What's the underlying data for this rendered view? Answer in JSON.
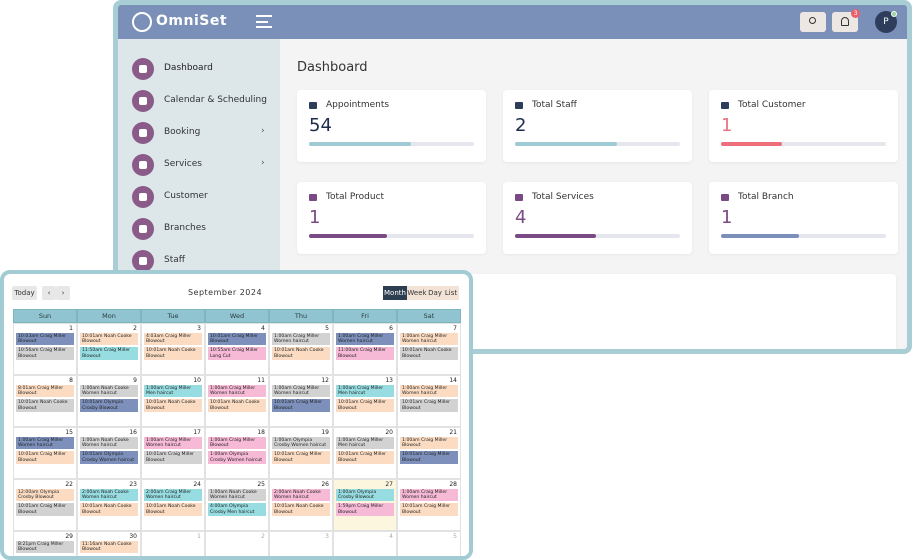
{
  "header": {
    "logo": "OmniSet",
    "notification_count": 3,
    "avatar": "P"
  },
  "sidebar": {
    "items": [
      {
        "label": "Dashboard",
        "active": true
      },
      {
        "label": "Calendar & Scheduling"
      },
      {
        "label": "Booking",
        "has_submenu": true
      },
      {
        "label": "Services",
        "has_submenu": true
      },
      {
        "label": "Customer"
      },
      {
        "label": "Branches"
      },
      {
        "label": "Staff"
      }
    ]
  },
  "main": {
    "title": "Dashboard",
    "cards": [
      {
        "title": "Appointments",
        "value": 54,
        "progress": 62,
        "value_color": "#1e2b4a",
        "bar_color": "#9fcad3"
      },
      {
        "title": "Total Staff",
        "value": 2,
        "progress": 62,
        "value_color": "#1e2b4a",
        "bar_color": "#9fcad3"
      },
      {
        "title": "Total Customer",
        "value": 1,
        "progress": 37,
        "value_color": "#e8727e",
        "bar_color": "#ee6f7b"
      },
      {
        "title": "Total Product",
        "value": 1,
        "progress": 47,
        "value_color": "#7a4a84",
        "bar_color": "#7a4a84"
      },
      {
        "title": "Total Services",
        "value": 4,
        "progress": 49,
        "value_color": "#7a4a84",
        "bar_color": "#7a4a84"
      },
      {
        "title": "Total Branch",
        "value": 1,
        "progress": 47,
        "value_color": "#7a4a84",
        "bar_color": "#7a90b8"
      }
    ]
  },
  "calendar": {
    "today_button": "Today",
    "title": "September 2024",
    "views": [
      "Month",
      "Week",
      "Day",
      "List"
    ],
    "active_view": "Month",
    "weekdays": [
      "Sun",
      "Mon",
      "Tue",
      "Wed",
      "Thu",
      "Fri",
      "Sat"
    ],
    "weeks": [
      [
        {
          "date": 1,
          "events": [
            {
              "text": "10:03am Craig Miller Blowout",
              "color": "#7c90bb"
            },
            {
              "text": "10:56am Craig Miller Blowout",
              "color": "#d2d2d2"
            }
          ]
        },
        {
          "date": 2,
          "events": [
            {
              "text": "10:01am Noah Cooke Blowout",
              "color": "#fbdcc2"
            },
            {
              "text": "11:50am Craig Miller Blowout",
              "color": "#96dce0"
            }
          ]
        },
        {
          "date": 3,
          "events": [
            {
              "text": "4:03am Craig Miller Blowout",
              "color": "#fbdcc2"
            },
            {
              "text": "10:01am Noah Cooke Blowout",
              "color": "#fbdcc2"
            }
          ]
        },
        {
          "date": 4,
          "events": [
            {
              "text": "10:01am Craig Miller Blowout",
              "color": "#7c90bb"
            },
            {
              "text": "10:55am Craig Miller Long Cut",
              "color": "#f6b9d6"
            }
          ]
        },
        {
          "date": 5,
          "events": [
            {
              "text": "1:00am Craig Miller Women haircut",
              "color": "#d2d2d2"
            },
            {
              "text": "10:01am Noah Cooke Blowout",
              "color": "#fbdcc2"
            }
          ]
        },
        {
          "date": 6,
          "events": [
            {
              "text": "1:00am Craig Miller Women haircut",
              "color": "#7c90bb"
            },
            {
              "text": "11:00am Craig Miller Blowout",
              "color": "#f6b9d6"
            }
          ]
        },
        {
          "date": 7,
          "events": [
            {
              "text": "1:00am Craig Miller Women haircut",
              "color": "#fbdcc2"
            },
            {
              "text": "10:01am Noah Cooke Blowout",
              "color": "#d2d2d2"
            }
          ]
        }
      ],
      [
        {
          "date": 8,
          "events": [
            {
              "text": "8:01am Craig Miller Blowout",
              "color": "#fbdcc2"
            },
            {
              "text": "10:01am Noah Cooke Blowout",
              "color": "#d2d2d2"
            }
          ]
        },
        {
          "date": 9,
          "events": [
            {
              "text": "1:00am Noah Cooke Women haircut",
              "color": "#d2d2d2"
            },
            {
              "text": "10:01am Olympia Crosby Blowout",
              "color": "#7c90bb"
            }
          ]
        },
        {
          "date": 10,
          "events": [
            {
              "text": "1:00am Craig Miller Men haircut",
              "color": "#96dce0"
            },
            {
              "text": "10:01am Noah Cooke Blowout",
              "color": "#fbdcc2"
            }
          ]
        },
        {
          "date": 11,
          "events": [
            {
              "text": "1:00am Craig Miller Women haircut",
              "color": "#f6b9d6"
            },
            {
              "text": "10:01am Noah Cooke Blowout",
              "color": "#fbdcc2"
            }
          ]
        },
        {
          "date": 12,
          "events": [
            {
              "text": "1:00am Craig Miller Women haircut",
              "color": "#d2d2d2"
            },
            {
              "text": "10:01am Craig Miller Blowout",
              "color": "#7c90bb"
            }
          ]
        },
        {
          "date": 13,
          "events": [
            {
              "text": "1:00am Craig Miller Men haircut",
              "color": "#96dce0"
            },
            {
              "text": "10:01am Craig Miller Blowout",
              "color": "#fbdcc2"
            }
          ]
        },
        {
          "date": 14,
          "events": [
            {
              "text": "1:00am Craig Miller Women haircut",
              "color": "#fbdcc2"
            },
            {
              "text": "10:01am Craig Miller Blowout",
              "color": "#d2d2d2"
            }
          ]
        }
      ],
      [
        {
          "date": 15,
          "events": [
            {
              "text": "1:00am Craig Miller Women haircut",
              "color": "#7c90bb"
            },
            {
              "text": "10:01am Craig Miller Blowout",
              "color": "#fbdcc2"
            }
          ]
        },
        {
          "date": 16,
          "events": [
            {
              "text": "1:00am Noah Cooke Women haircut",
              "color": "#d2d2d2"
            },
            {
              "text": "10:01am Olympia Crosby Women haircut",
              "color": "#7c90bb"
            }
          ]
        },
        {
          "date": 17,
          "events": [
            {
              "text": "1:00am Craig Miller Women haircut",
              "color": "#f6b9d6"
            },
            {
              "text": "10:01am Craig Miller Blowout",
              "color": "#d2d2d2"
            }
          ]
        },
        {
          "date": 18,
          "events": [
            {
              "text": "1:00am Craig Miller Blowout",
              "color": "#f6b9d6"
            },
            {
              "text": "1:00am Olympia Crosby Women haircut",
              "color": "#f6b9d6"
            }
          ]
        },
        {
          "date": 19,
          "events": [
            {
              "text": "1:00am Olympia Crosby Women haircut",
              "color": "#d2d2d2"
            },
            {
              "text": "10:01am Craig Miller Blowout",
              "color": "#fbdcc2"
            }
          ]
        },
        {
          "date": 20,
          "events": [
            {
              "text": "1:00am Craig Miller Men haircut",
              "color": "#d2d2d2"
            },
            {
              "text": "10:01am Craig Miller Blowout",
              "color": "#fbdcc2"
            }
          ]
        },
        {
          "date": 21,
          "events": [
            {
              "text": "1:00am Craig Miller Blowout",
              "color": "#fbdcc2"
            },
            {
              "text": "10:01am Craig Miller Blowout",
              "color": "#7c90bb"
            }
          ]
        }
      ],
      [
        {
          "date": 22,
          "events": [
            {
              "text": "12:00am Olympia Crosby Blowout",
              "color": "#fbdcc2"
            },
            {
              "text": "10:01am Craig Miller Blowout",
              "color": "#d2d2d2"
            }
          ]
        },
        {
          "date": 23,
          "events": [
            {
              "text": "2:00am Noah Cooke Women haircut",
              "color": "#96dce0"
            },
            {
              "text": "10:01am Noah Cooke Blowout",
              "color": "#fbdcc2"
            }
          ]
        },
        {
          "date": 24,
          "events": [
            {
              "text": "2:00am Craig Miller Women haircut",
              "color": "#96dce0"
            },
            {
              "text": "10:01am Noah Cooke Blowout",
              "color": "#fbdcc2"
            }
          ]
        },
        {
          "date": 25,
          "events": [
            {
              "text": "1:00am Noah Cooke Women haircut",
              "color": "#d2d2d2"
            },
            {
              "text": "4:00am Olympia Crosby Men haircut",
              "color": "#96dce0"
            }
          ]
        },
        {
          "date": 26,
          "events": [
            {
              "text": "2:00am Noah Cooke Women haircut",
              "color": "#f6b9d6"
            },
            {
              "text": "10:01am Noah Cooke Blowout",
              "color": "#fbdcc2"
            }
          ]
        },
        {
          "date": 27,
          "highlight": true,
          "events": [
            {
              "text": "1:00am Olympia Crosby Blowout",
              "color": "#96dce0"
            },
            {
              "text": "1:59pm Craig Miller Blowout",
              "color": "#f6b9d6"
            }
          ]
        },
        {
          "date": 28,
          "events": [
            {
              "text": "1:00am Craig Miller Women haircut",
              "color": "#f6b9d6"
            },
            {
              "text": "10:01am Craig Miller Blowout",
              "color": "#fbdcc2"
            }
          ]
        }
      ],
      [
        {
          "date": 29,
          "events": [
            {
              "text": "8:21pm Craig Miller Blowout",
              "color": "#d2d2d2"
            }
          ]
        },
        {
          "date": 30,
          "events": [
            {
              "text": "11:16am Noah Cooke Blowout",
              "color": "#fbdcc2"
            }
          ]
        },
        {
          "date": 1,
          "other_month": true,
          "events": []
        },
        {
          "date": 2,
          "other_month": true,
          "events": []
        },
        {
          "date": 3,
          "other_month": true,
          "events": []
        },
        {
          "date": 4,
          "other_month": true,
          "events": []
        },
        {
          "date": 5,
          "other_month": true,
          "events": []
        }
      ]
    ]
  }
}
